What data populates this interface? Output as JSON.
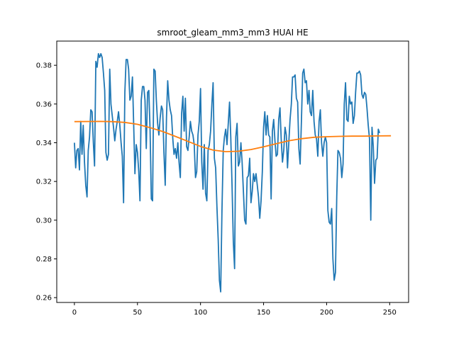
{
  "chart_data": {
    "type": "line",
    "title": "smroot_gleam_mm3_mm3 HUAI HE",
    "xlabel": "",
    "ylabel": "",
    "xlim": [
      -14,
      265
    ],
    "ylim": [
      0.2575,
      0.3925
    ],
    "x_ticks": [
      0,
      50,
      100,
      150,
      200,
      250
    ],
    "y_ticks": [
      0.26,
      0.28,
      0.3,
      0.32,
      0.34,
      0.36,
      0.38
    ],
    "y_tick_labels": [
      "0.26",
      "0.28",
      "0.30",
      "0.32",
      "0.34",
      "0.36",
      "0.38"
    ],
    "grid": false,
    "series": [
      {
        "color": "#1f77b4",
        "points": [
          [
            0,
            0.34
          ],
          [
            1,
            0.327
          ],
          [
            2,
            0.336
          ],
          [
            3,
            0.337
          ],
          [
            4,
            0.326
          ],
          [
            5,
            0.351
          ],
          [
            6,
            0.334
          ],
          [
            7,
            0.349
          ],
          [
            8,
            0.33
          ],
          [
            9,
            0.318
          ],
          [
            10,
            0.312
          ],
          [
            11,
            0.336
          ],
          [
            12,
            0.343
          ],
          [
            13,
            0.357
          ],
          [
            14,
            0.356
          ],
          [
            15,
            0.34
          ],
          [
            16,
            0.328
          ],
          [
            17,
            0.382
          ],
          [
            18,
            0.379
          ],
          [
            19,
            0.386
          ],
          [
            20,
            0.384
          ],
          [
            21,
            0.386
          ],
          [
            22,
            0.384
          ],
          [
            23,
            0.376
          ],
          [
            24,
            0.367
          ],
          [
            25,
            0.335
          ],
          [
            26,
            0.331
          ],
          [
            27,
            0.334
          ],
          [
            28,
            0.378
          ],
          [
            29,
            0.36
          ],
          [
            30,
            0.354
          ],
          [
            31,
            0.348
          ],
          [
            32,
            0.341
          ],
          [
            33,
            0.347
          ],
          [
            34,
            0.351
          ],
          [
            35,
            0.356
          ],
          [
            36,
            0.349
          ],
          [
            37,
            0.34
          ],
          [
            38,
            0.333
          ],
          [
            39,
            0.309
          ],
          [
            40,
            0.366
          ],
          [
            41,
            0.383
          ],
          [
            42,
            0.383
          ],
          [
            43,
            0.378
          ],
          [
            44,
            0.362
          ],
          [
            45,
            0.364
          ],
          [
            46,
            0.374
          ],
          [
            47,
            0.35
          ],
          [
            48,
            0.324
          ],
          [
            49,
            0.339
          ],
          [
            50,
            0.335
          ],
          [
            51,
            0.325
          ],
          [
            52,
            0.31
          ],
          [
            53,
            0.362
          ],
          [
            54,
            0.369
          ],
          [
            55,
            0.369
          ],
          [
            56,
            0.362
          ],
          [
            57,
            0.337
          ],
          [
            58,
            0.366
          ],
          [
            59,
            0.367
          ],
          [
            60,
            0.346
          ],
          [
            61,
            0.311
          ],
          [
            62,
            0.31
          ],
          [
            63,
            0.378
          ],
          [
            64,
            0.377
          ],
          [
            65,
            0.362
          ],
          [
            66,
            0.35
          ],
          [
            67,
            0.344
          ],
          [
            68,
            0.353
          ],
          [
            69,
            0.359
          ],
          [
            70,
            0.357
          ],
          [
            71,
            0.335
          ],
          [
            72,
            0.318
          ],
          [
            73,
            0.353
          ],
          [
            74,
            0.372
          ],
          [
            75,
            0.362
          ],
          [
            76,
            0.357
          ],
          [
            77,
            0.354
          ],
          [
            78,
            0.342
          ],
          [
            79,
            0.334
          ],
          [
            80,
            0.337
          ],
          [
            81,
            0.332
          ],
          [
            82,
            0.34
          ],
          [
            83,
            0.33
          ],
          [
            84,
            0.322
          ],
          [
            85,
            0.355
          ],
          [
            86,
            0.364
          ],
          [
            87,
            0.346
          ],
          [
            88,
            0.363
          ],
          [
            89,
            0.338
          ],
          [
            90,
            0.336
          ],
          [
            91,
            0.343
          ],
          [
            92,
            0.351
          ],
          [
            93,
            0.346
          ],
          [
            94,
            0.344
          ],
          [
            95,
            0.339
          ],
          [
            96,
            0.322
          ],
          [
            97,
            0.325
          ],
          [
            98,
            0.344
          ],
          [
            99,
            0.351
          ],
          [
            100,
            0.368
          ],
          [
            101,
            0.33
          ],
          [
            102,
            0.316
          ],
          [
            103,
            0.339
          ],
          [
            104,
            0.314
          ],
          [
            105,
            0.31
          ],
          [
            106,
            0.336
          ],
          [
            107,
            0.339
          ],
          [
            108,
            0.346
          ],
          [
            109,
            0.36
          ],
          [
            110,
            0.371
          ],
          [
            111,
            0.332
          ],
          [
            112,
            0.327
          ],
          [
            113,
            0.307
          ],
          [
            114,
            0.29
          ],
          [
            115,
            0.269
          ],
          [
            116,
            0.263
          ],
          [
            117,
            0.305
          ],
          [
            118,
            0.336
          ],
          [
            119,
            0.343
          ],
          [
            120,
            0.347
          ],
          [
            121,
            0.339
          ],
          [
            122,
            0.35
          ],
          [
            123,
            0.361
          ],
          [
            124,
            0.343
          ],
          [
            125,
            0.318
          ],
          [
            126,
            0.289
          ],
          [
            127,
            0.275
          ],
          [
            128,
            0.343
          ],
          [
            129,
            0.35
          ],
          [
            130,
            0.328
          ],
          [
            131,
            0.33
          ],
          [
            132,
            0.34
          ],
          [
            133,
            0.33
          ],
          [
            134,
            0.315
          ],
          [
            135,
            0.3
          ],
          [
            136,
            0.298
          ],
          [
            137,
            0.322
          ],
          [
            138,
            0.323
          ],
          [
            139,
            0.332
          ],
          [
            140,
            0.309
          ],
          [
            141,
            0.315
          ],
          [
            142,
            0.324
          ],
          [
            143,
            0.32
          ],
          [
            144,
            0.324
          ],
          [
            145,
            0.318
          ],
          [
            146,
            0.312
          ],
          [
            147,
            0.301
          ],
          [
            148,
            0.31
          ],
          [
            149,
            0.325
          ],
          [
            150,
            0.348
          ],
          [
            151,
            0.356
          ],
          [
            152,
            0.344
          ],
          [
            153,
            0.354
          ],
          [
            154,
            0.344
          ],
          [
            155,
            0.343
          ],
          [
            156,
            0.311
          ],
          [
            157,
            0.346
          ],
          [
            158,
            0.352
          ],
          [
            159,
            0.341
          ],
          [
            160,
            0.333
          ],
          [
            161,
            0.334
          ],
          [
            162,
            0.352
          ],
          [
            163,
            0.358
          ],
          [
            164,
            0.342
          ],
          [
            165,
            0.33
          ],
          [
            166,
            0.336
          ],
          [
            167,
            0.348
          ],
          [
            168,
            0.344
          ],
          [
            169,
            0.327
          ],
          [
            170,
            0.34
          ],
          [
            171,
            0.352
          ],
          [
            172,
            0.36
          ],
          [
            173,
            0.374
          ],
          [
            174,
            0.374
          ],
          [
            175,
            0.375
          ],
          [
            176,
            0.363
          ],
          [
            177,
            0.361
          ],
          [
            178,
            0.337
          ],
          [
            179,
            0.329
          ],
          [
            180,
            0.351
          ],
          [
            181,
            0.376
          ],
          [
            182,
            0.378
          ],
          [
            183,
            0.371
          ],
          [
            184,
            0.372
          ],
          [
            185,
            0.36
          ],
          [
            186,
            0.367
          ],
          [
            187,
            0.356
          ],
          [
            188,
            0.354
          ],
          [
            189,
            0.367
          ],
          [
            190,
            0.351
          ],
          [
            191,
            0.344
          ],
          [
            192,
            0.342
          ],
          [
            193,
            0.333
          ],
          [
            194,
            0.351
          ],
          [
            195,
            0.357
          ],
          [
            196,
            0.34
          ],
          [
            197,
            0.333
          ],
          [
            198,
            0.34
          ],
          [
            199,
            0.343
          ],
          [
            200,
            0.34
          ],
          [
            201,
            0.305
          ],
          [
            202,
            0.299
          ],
          [
            203,
            0.298
          ],
          [
            204,
            0.306
          ],
          [
            205,
            0.28
          ],
          [
            206,
            0.269
          ],
          [
            207,
            0.273
          ],
          [
            208,
            0.312
          ],
          [
            209,
            0.336
          ],
          [
            210,
            0.335
          ],
          [
            211,
            0.332
          ],
          [
            212,
            0.322
          ],
          [
            213,
            0.329
          ],
          [
            214,
            0.36
          ],
          [
            215,
            0.371
          ],
          [
            216,
            0.352
          ],
          [
            217,
            0.351
          ],
          [
            218,
            0.364
          ],
          [
            219,
            0.36
          ],
          [
            220,
            0.361
          ],
          [
            221,
            0.35
          ],
          [
            222,
            0.354
          ],
          [
            223,
            0.366
          ],
          [
            224,
            0.376
          ],
          [
            225,
            0.376
          ],
          [
            226,
            0.377
          ],
          [
            227,
            0.375
          ],
          [
            228,
            0.365
          ],
          [
            229,
            0.363
          ],
          [
            230,
            0.366
          ],
          [
            231,
            0.365
          ],
          [
            232,
            0.358
          ],
          [
            233,
            0.349
          ],
          [
            234,
            0.342
          ],
          [
            235,
            0.3
          ],
          [
            236,
            0.348
          ],
          [
            237,
            0.338
          ],
          [
            238,
            0.319
          ],
          [
            239,
            0.331
          ],
          [
            240,
            0.332
          ],
          [
            241,
            0.347
          ],
          [
            242,
            0.345
          ]
        ]
      },
      {
        "color": "#ff7f0e",
        "points": [
          [
            0,
            0.3509
          ],
          [
            20,
            0.351
          ],
          [
            30,
            0.3509
          ],
          [
            40,
            0.3505
          ],
          [
            50,
            0.3495
          ],
          [
            60,
            0.3478
          ],
          [
            70,
            0.3458
          ],
          [
            80,
            0.3433
          ],
          [
            90,
            0.3407
          ],
          [
            100,
            0.3381
          ],
          [
            110,
            0.3362
          ],
          [
            120,
            0.3354
          ],
          [
            130,
            0.3356
          ],
          [
            140,
            0.3365
          ],
          [
            150,
            0.3379
          ],
          [
            160,
            0.3395
          ],
          [
            170,
            0.341
          ],
          [
            180,
            0.3421
          ],
          [
            190,
            0.3428
          ],
          [
            200,
            0.3431
          ],
          [
            210,
            0.3433
          ],
          [
            220,
            0.3434
          ],
          [
            230,
            0.3434
          ],
          [
            240,
            0.3435
          ],
          [
            251,
            0.3436
          ]
        ]
      }
    ]
  }
}
